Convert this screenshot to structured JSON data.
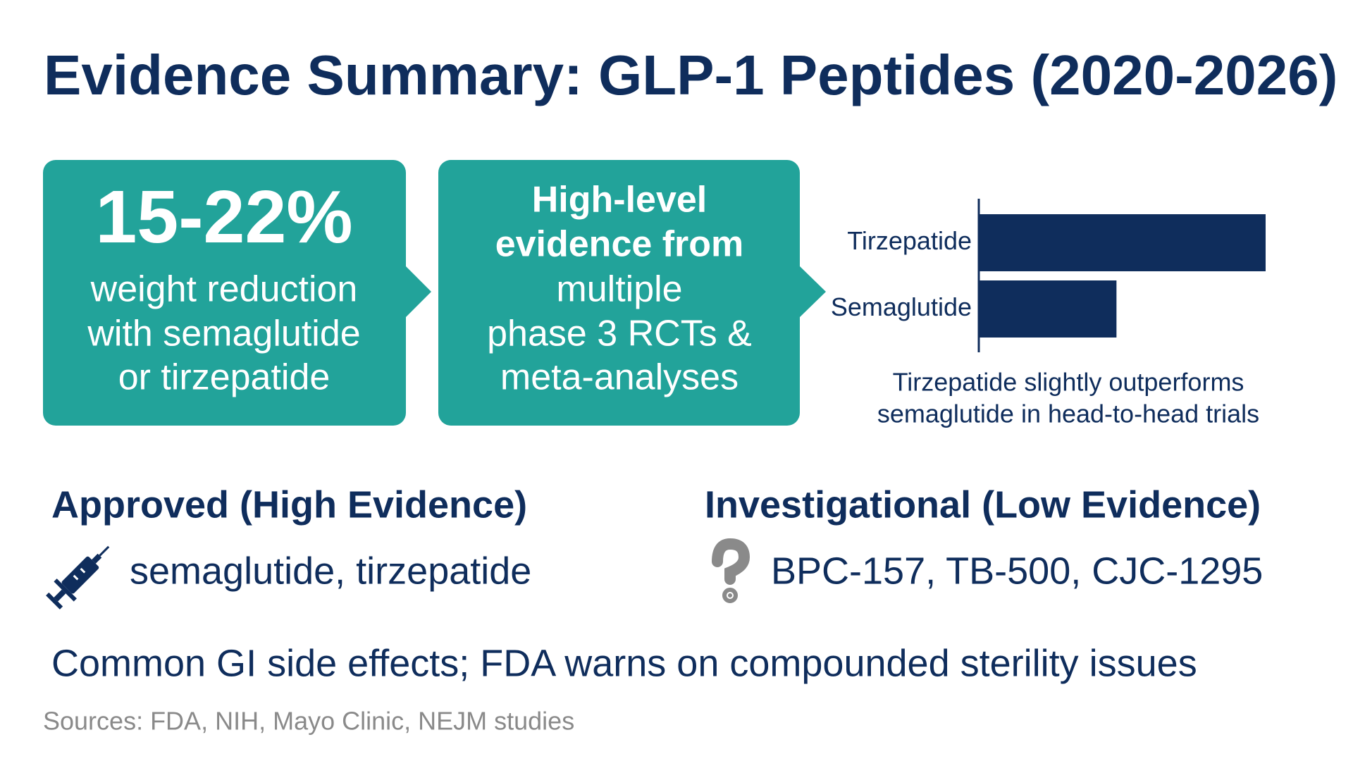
{
  "header": {
    "title": "Evidence Summary: GLP-1 Peptides (2020-2026)"
  },
  "cards": [
    {
      "highlight": "15-22%",
      "lines": [
        "weight reduction",
        "with semaglutide",
        "or tirzepatide"
      ]
    },
    {
      "bold_lines": [
        "High-level",
        "evidence from"
      ],
      "lines": [
        "multiple",
        "phase 3 RCTs &",
        "meta-analyses"
      ]
    }
  ],
  "chart": {
    "type": "bar",
    "orientation": "horizontal",
    "categories": [
      "Tirzepatide",
      "Semaglutide"
    ],
    "values": [
      100,
      48
    ],
    "xlim": [
      0,
      100
    ],
    "color": "#0f2d5c",
    "caption": [
      "Tirzepatide slightly outperforms",
      "semaglutide in head-to-head trials"
    ]
  },
  "sections": [
    {
      "heading": "Approved (High Evidence)",
      "items": "semaglutide, tirzepatide"
    },
    {
      "heading": "Investigational (Low Evidence)",
      "items": "BPC-157, TB-500, CJC-1295"
    }
  ],
  "note": "Common GI side effects; FDA warns on compounded sterility issues",
  "sources": "Sources: FDA, NIH, Mayo Clinic, NEJM studies"
}
